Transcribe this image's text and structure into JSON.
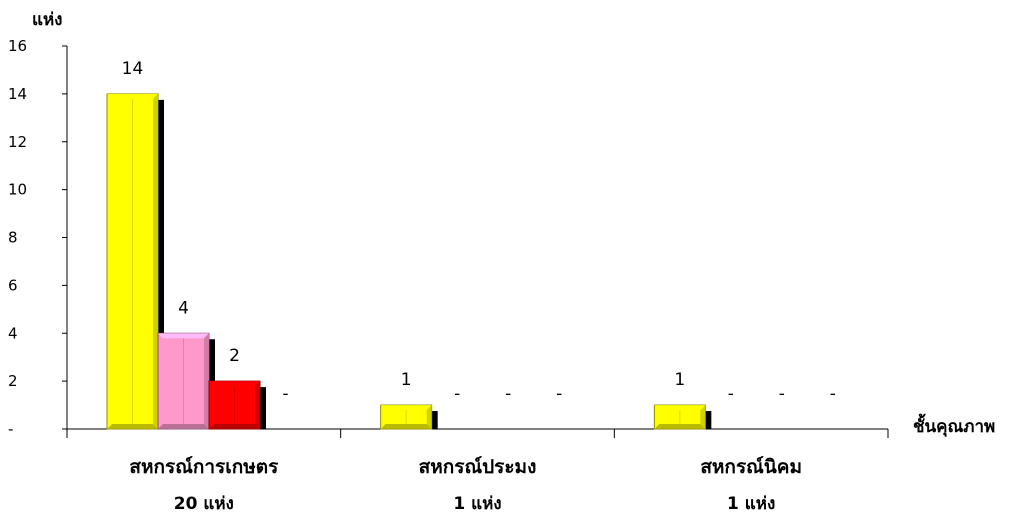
{
  "chart_data": {
    "type": "bar",
    "ylabel": "แห่ง",
    "xlabel": "ชั้นคุณภาพ",
    "ylim": [
      0,
      16
    ],
    "yticks": [
      "-",
      "2",
      "4",
      "6",
      "8",
      "10",
      "12",
      "14",
      "16"
    ],
    "categories": [
      "สหกรณ์การเกษตร",
      "สหกรณ์ประมง",
      "สหกรณ์นิคม"
    ],
    "category_counts": [
      "20  แห่ง",
      "1  แห่ง",
      "1  แห่ง"
    ],
    "series": [
      {
        "color": "#ffff00",
        "values": [
          14,
          1,
          1
        ],
        "labels": [
          "14",
          "1",
          "1"
        ]
      },
      {
        "color": "#ff99cc",
        "values": [
          4,
          0,
          0
        ],
        "labels": [
          "4",
          "-",
          "-"
        ]
      },
      {
        "color": "#ff0000",
        "values": [
          2,
          0,
          0
        ],
        "labels": [
          "2",
          "-",
          "-"
        ]
      },
      {
        "color": "#ffffff",
        "values": [
          0,
          0,
          0
        ],
        "labels": [
          "-",
          "-",
          "-"
        ]
      }
    ],
    "grid": false,
    "legend": "none"
  }
}
